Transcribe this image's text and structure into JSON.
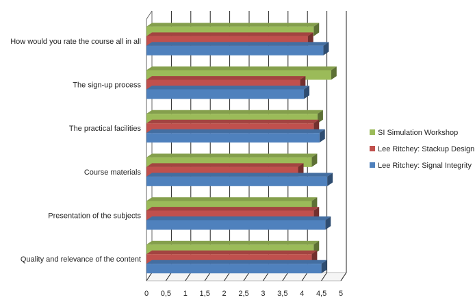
{
  "chart_data": {
    "type": "bar",
    "orientation": "horizontal",
    "style": "3d",
    "categories": [
      "How would you rate the course all in all",
      "The sign-up process",
      "The practical facilities",
      "Course materials",
      "Presentation of the subjects",
      "Quality and relevance of the content"
    ],
    "series": [
      {
        "name": "SI Simulation Workshop",
        "color": "#9bbb59",
        "values": [
          4.3,
          4.75,
          4.4,
          4.25,
          4.25,
          4.3
        ]
      },
      {
        "name": "Lee Ritchey: Stackup Design",
        "color": "#c0504d",
        "values": [
          4.15,
          3.95,
          4.3,
          3.9,
          4.3,
          4.25
        ]
      },
      {
        "name": "Lee Ritchey: Signal Integrity",
        "color": "#4f81bd",
        "values": [
          4.55,
          4.05,
          4.45,
          4.65,
          4.6,
          4.5
        ]
      }
    ],
    "xlim": [
      0,
      5
    ],
    "xticks": [
      "0",
      "0,5",
      "1",
      "1,5",
      "2",
      "2,5",
      "3",
      "3,5",
      "4",
      "4,5",
      "5"
    ],
    "title": "",
    "xlabel": "",
    "ylabel": "",
    "grid": true,
    "legend": "right"
  }
}
